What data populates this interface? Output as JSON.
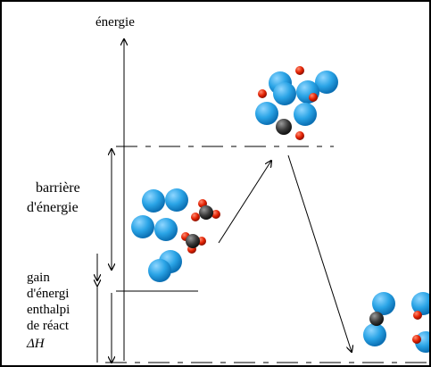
{
  "axis_label": "énergie",
  "barrier_label": [
    "barrière",
    "d'énergie"
  ],
  "gain_label": [
    "gain",
    "d'énergi",
    "enthalpi",
    "de réact",
    "ΔH"
  ],
  "colors": {
    "hydrogen": "#2aa4e6",
    "oxygen": "#e22000",
    "carbon": "#3a3a3a",
    "line": "#000000"
  }
}
